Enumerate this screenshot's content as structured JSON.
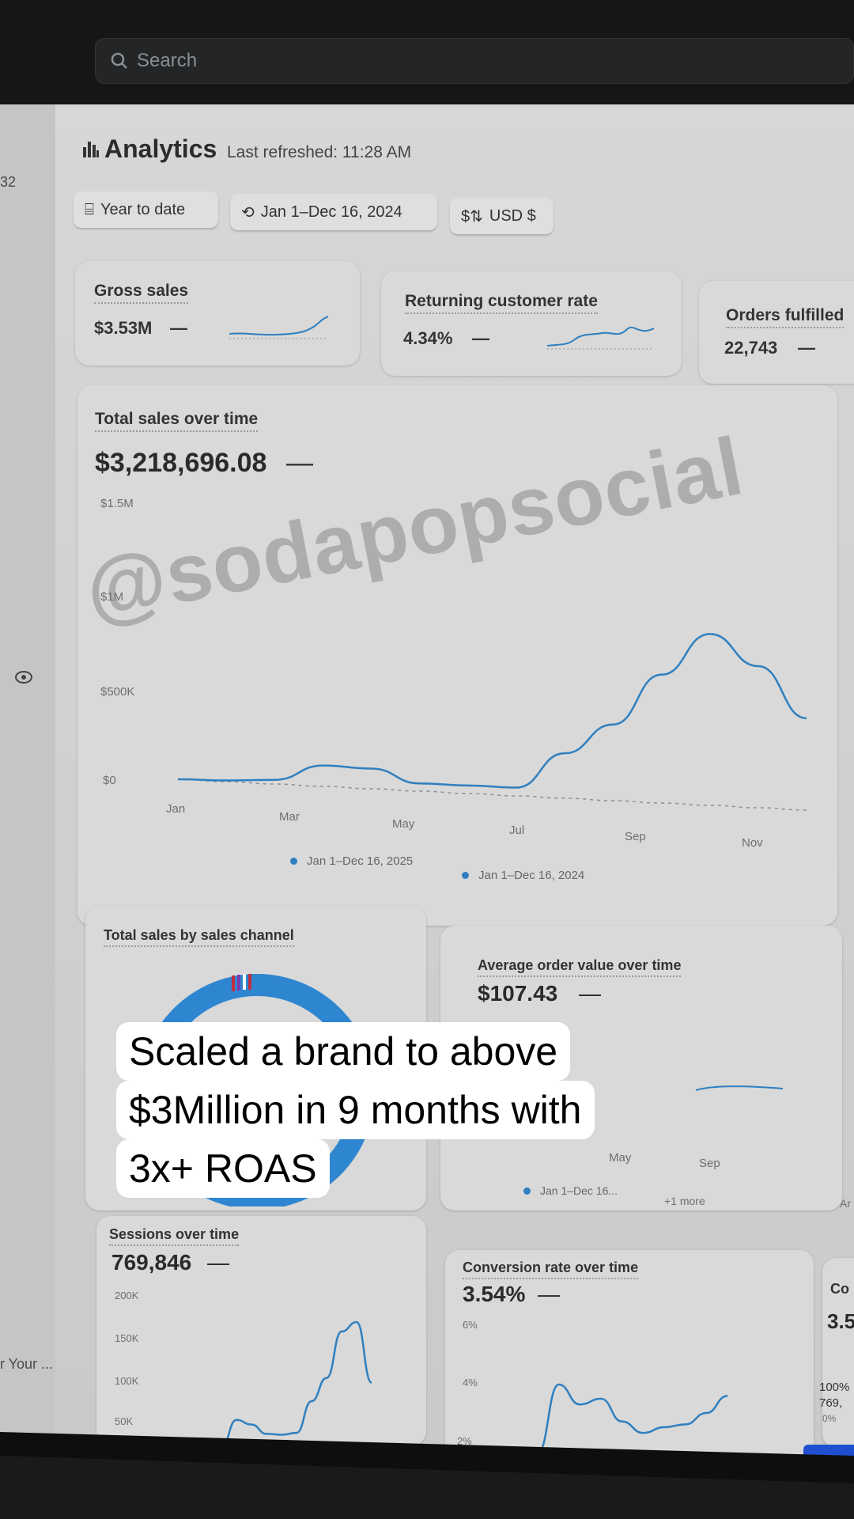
{
  "search": {
    "placeholder": "Search",
    "icon": "search-icon"
  },
  "sidebar": {
    "badge": "32",
    "item_label": "r Your ...",
    "icon": "eye-icon"
  },
  "header": {
    "title": "Analytics",
    "last_refreshed": "Last refreshed: 11:28 AM",
    "icon": "bar-chart-icon"
  },
  "filters": [
    {
      "label": "Year to date",
      "icon": "calendar-icon"
    },
    {
      "label": "Jan 1–Dec 16, 2024",
      "icon": "calendar-compare-icon"
    },
    {
      "label": "USD $",
      "icon": "currency-icon"
    }
  ],
  "metrics": [
    {
      "label": "Gross sales",
      "value": "$3.53M",
      "change": "—"
    },
    {
      "label": "Returning customer rate",
      "value": "4.34%",
      "change": "—"
    },
    {
      "label": "Orders fulfilled",
      "value": "22,743",
      "change": "—"
    }
  ],
  "total_sales": {
    "title": "Total sales over time",
    "value": "$3,218,696.08",
    "change": "—",
    "legend": [
      "Jan 1–Dec 16, 2025",
      "Jan 1–Dec 16, 2024"
    ]
  },
  "chart_data": [
    {
      "type": "line",
      "title": "Total sales over time",
      "y_ticks": [
        "$1.5M",
        "$1M",
        "$500K",
        "$0"
      ],
      "ylim": [
        0,
        1500000
      ],
      "x_ticks": [
        "Jan",
        "Mar",
        "May",
        "Jul",
        "Sep",
        "Nov"
      ],
      "series": [
        {
          "name": "Jan 1–Dec 16, 2025",
          "style": "solid",
          "values": [
            0,
            0,
            10000,
            95000,
            85000,
            10000,
            5000,
            0,
            195000,
            360000,
            640000,
            870000,
            700000,
            420000
          ]
        },
        {
          "name": "Jan 1–Dec 16, 2024",
          "style": "dashed",
          "values": [
            0,
            0,
            0,
            0,
            0,
            0,
            0,
            0,
            0,
            0,
            0,
            0,
            0,
            0
          ]
        }
      ]
    },
    {
      "type": "line",
      "title": "Sessions over time",
      "y_ticks": [
        "200K",
        "150K",
        "100K",
        "50K"
      ],
      "ylim": [
        30000,
        200000
      ],
      "values": [
        30000,
        60000,
        55000,
        45000,
        44000,
        46000,
        80000,
        105000,
        155000,
        165000,
        100000
      ]
    },
    {
      "type": "line",
      "title": "Conversion rate over time",
      "y_ticks": [
        "6%",
        "4%",
        "2%"
      ],
      "ylim": [
        1.5,
        6.5
      ],
      "values": [
        1.6,
        4.0,
        3.3,
        3.5,
        2.7,
        2.3,
        2.5,
        2.6,
        3.0,
        3.6
      ]
    }
  ],
  "sales_channel": {
    "title": "Total sales by sales channel"
  },
  "aov": {
    "title": "Average order value over time",
    "value": "$107.43",
    "change": "—",
    "x_ticks": [
      "May",
      "Sep"
    ],
    "legend": "Jan 1–Dec 16...",
    "more": "+1 more"
  },
  "sessions": {
    "title": "Sessions over time",
    "value": "769,846",
    "change": "—"
  },
  "conversion": {
    "title": "Conversion rate over time",
    "value": "3.54%",
    "change": "—"
  },
  "right_card": {
    "title": "Co",
    "value": "3.5",
    "row1": "100%",
    "row2": "769,",
    "row3": "0%",
    "side_label": "Ar"
  },
  "watermark": "@sodapopsocial",
  "overlay": {
    "lines": [
      "Scaled a brand  to above",
      "$3Million in  9 months with",
      "3x+ ROAS"
    ]
  },
  "colors": {
    "accent": "#2f7fc0",
    "card": "#d8d9d8",
    "topbar": "#151617"
  }
}
